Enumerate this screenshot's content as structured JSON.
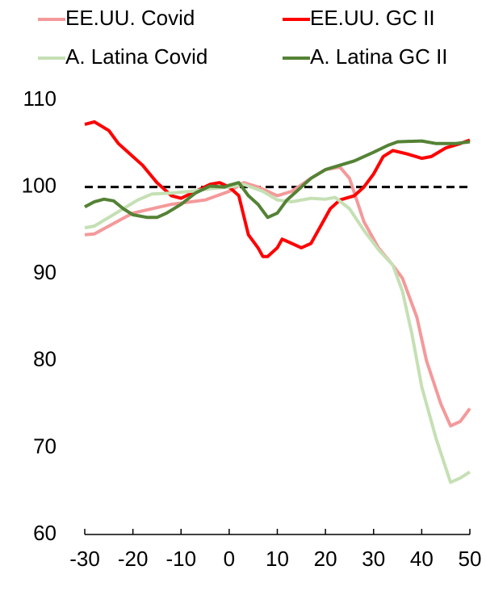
{
  "chart_data": {
    "type": "line",
    "series": [
      {
        "name": "EE.UU. Covid",
        "color": "#f4999a",
        "x": [
          -30,
          -28,
          -25,
          -20,
          -12,
          -5,
          0,
          3,
          6,
          10,
          13,
          17,
          20,
          23,
          25,
          28,
          31,
          34,
          36,
          39,
          41,
          44,
          46,
          48,
          50
        ],
        "values": [
          94.5,
          94.6,
          95.5,
          97,
          98,
          98.5,
          99.5,
          100.5,
          100,
          99,
          99.5,
          101,
          102,
          102.3,
          101,
          96,
          93,
          91,
          89.5,
          85,
          80,
          75,
          72.5,
          73,
          74.5
        ]
      },
      {
        "name": "EE.UU. GC II",
        "color": "#ff0000",
        "x": [
          -30,
          -28,
          -25,
          -23,
          -21,
          -18,
          -15,
          -12,
          -10,
          -7,
          -4,
          -2,
          0,
          2,
          4,
          6,
          7,
          8,
          10,
          11,
          13,
          15,
          17,
          19,
          21,
          23,
          26,
          28,
          30,
          32,
          34,
          37,
          40,
          42,
          45,
          48,
          50
        ],
        "values": [
          107.2,
          107.5,
          106.5,
          105,
          104,
          102.5,
          100.5,
          99,
          98.7,
          99.5,
          100.3,
          100.5,
          100,
          99,
          94.5,
          93,
          92,
          92,
          93,
          94,
          93.5,
          93,
          93.5,
          95.5,
          97.5,
          98.5,
          99,
          100,
          101.5,
          103.5,
          104.2,
          103.8,
          103.3,
          103.5,
          104.5,
          105,
          105.4
        ]
      },
      {
        "name": "A. Latina Covid",
        "color": "#c5e0b4",
        "x": [
          -30,
          -28,
          -25,
          -22,
          -19,
          -16,
          -12,
          -8,
          -4,
          0,
          3,
          7,
          10,
          13,
          17,
          20,
          22,
          25,
          28,
          31,
          34,
          36,
          38,
          40,
          43,
          46,
          48,
          50
        ],
        "values": [
          95.3,
          95.5,
          96.5,
          97.5,
          98.5,
          99.2,
          99.3,
          99.5,
          99.8,
          100,
          100.3,
          99.5,
          98.5,
          98.3,
          98.7,
          98.6,
          98.8,
          97.5,
          95,
          92.8,
          91,
          88,
          83,
          77,
          71,
          66,
          66.5,
          67.2
        ]
      },
      {
        "name": "A. Latina GC II",
        "color": "#548235",
        "x": [
          -30,
          -28,
          -26,
          -24,
          -22,
          -20,
          -17,
          -15,
          -13,
          -10,
          -7,
          -4,
          -1,
          0,
          2,
          4,
          6,
          8,
          10,
          12,
          14,
          17,
          20,
          23,
          26,
          30,
          33,
          35,
          40,
          43,
          47,
          50
        ],
        "values": [
          97.7,
          98.3,
          98.6,
          98.4,
          97.5,
          96.8,
          96.5,
          96.5,
          97,
          98,
          99.3,
          100.1,
          100,
          100.2,
          100.5,
          99,
          98,
          96.5,
          97,
          98.5,
          99.5,
          101,
          102,
          102.5,
          103,
          104,
          104.8,
          105.2,
          105.3,
          105,
          105,
          105.2
        ]
      }
    ],
    "reference_line": {
      "value": 100,
      "color": "#000000"
    },
    "xlim": [
      -30,
      50
    ],
    "xticks": [
      -30,
      -20,
      -10,
      0,
      10,
      20,
      30,
      40,
      50
    ],
    "ylim": [
      60,
      110
    ],
    "yticks": [
      60,
      70,
      80,
      90,
      100,
      110
    ],
    "grid": false
  }
}
